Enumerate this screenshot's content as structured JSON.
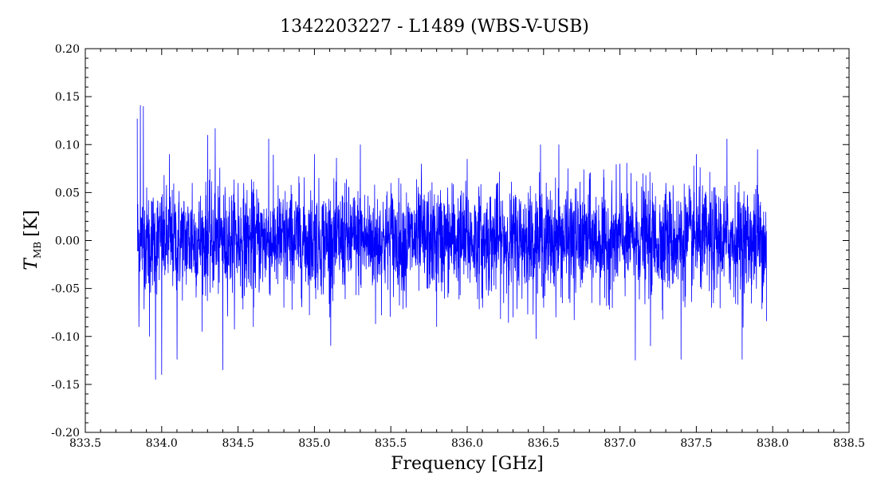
{
  "chart_data": {
    "type": "line",
    "title": "1342203227 - L1489 (WBS-V-USB)",
    "xlabel": "Frequency [GHz]",
    "ylabel": {
      "symbol": "T",
      "subscript": "MB",
      "unit": "[K]"
    },
    "xlim": [
      833.5,
      838.5
    ],
    "ylim": [
      -0.2,
      0.2
    ],
    "x_ticks": [
      "833.5",
      "834.0",
      "834.5",
      "835.0",
      "835.5",
      "836.0",
      "836.5",
      "837.0",
      "837.5",
      "838.0",
      "838.5"
    ],
    "y_ticks": [
      "-0.20",
      "-0.15",
      "-0.10",
      "-0.05",
      "0.00",
      "0.05",
      "0.10",
      "0.15",
      "0.20"
    ],
    "grid": false,
    "series": [
      {
        "color": "#0000ff",
        "x_range": [
          833.84,
          837.96
        ],
        "x": [
          833.84,
          833.85,
          833.86,
          833.88,
          833.92,
          833.96,
          833.98,
          834.0,
          834.05,
          834.1,
          834.2,
          834.3,
          834.35,
          834.4,
          834.5,
          834.6,
          834.7,
          834.8,
          834.9,
          835.0,
          835.1,
          835.2,
          835.3,
          835.4,
          835.5,
          835.6,
          835.7,
          835.8,
          835.9,
          836.0,
          836.1,
          836.2,
          836.3,
          836.4,
          836.48,
          836.5,
          836.6,
          836.7,
          836.8,
          836.9,
          837.0,
          837.1,
          837.15,
          837.2,
          837.3,
          837.4,
          837.5,
          837.6,
          837.7,
          837.8,
          837.9,
          837.96
        ],
        "y": [
          0.127,
          -0.09,
          0.141,
          0.14,
          -0.1,
          -0.145,
          0.02,
          -0.14,
          0.09,
          -0.124,
          0.06,
          0.11,
          0.117,
          -0.135,
          0.06,
          -0.09,
          0.106,
          -0.07,
          0.06,
          0.09,
          -0.08,
          0.06,
          0.1,
          -0.087,
          0.06,
          -0.07,
          0.08,
          -0.09,
          0.06,
          0.085,
          -0.07,
          0.06,
          -0.08,
          0.05,
          0.1,
          -0.07,
          0.1,
          -0.083,
          0.07,
          -0.06,
          0.08,
          -0.125,
          0.07,
          -0.11,
          0.06,
          -0.124,
          0.09,
          -0.07,
          0.106,
          -0.124,
          0.095,
          -0.084
        ],
        "noise_rms": 0.035
      }
    ]
  }
}
